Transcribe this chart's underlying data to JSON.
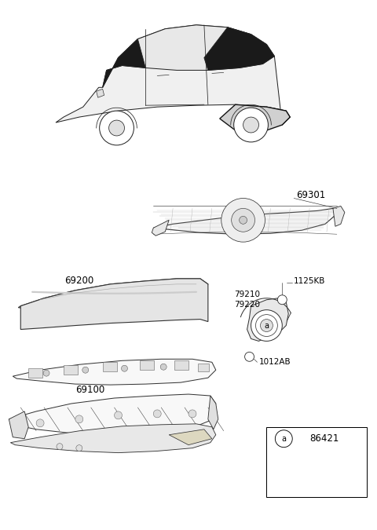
{
  "bg_color": "#ffffff",
  "lw": 0.9,
  "car_color": "#222222",
  "part_color": "#333333",
  "part_fill": "#f8f8f8",
  "figsize": [
    4.8,
    6.75
  ],
  "dpi": 100,
  "label_69301": "69301",
  "label_69200": "69200",
  "label_69100": "69100",
  "label_79210": "79210",
  "label_79220": "79220",
  "label_1125KB": "1125KB",
  "label_1012AB": "1012AB",
  "label_86421": "86421",
  "label_a": "a"
}
